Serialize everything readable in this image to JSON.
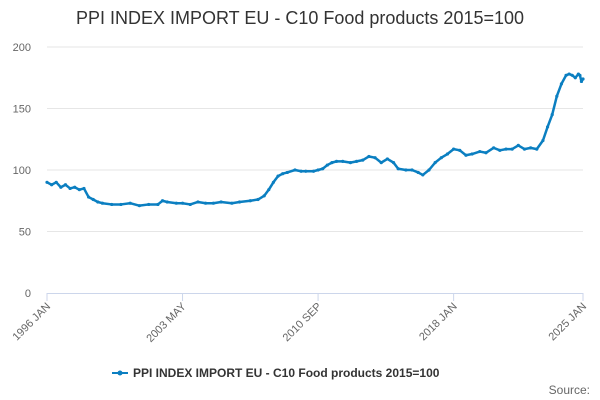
{
  "chart_data": {
    "type": "line",
    "title": "PPI INDEX IMPORT EU - C10 Food products 2015=100",
    "xlabel": "",
    "ylabel": "",
    "ylim": [
      0,
      200
    ],
    "y_ticks": [
      "0",
      "50",
      "100",
      "150",
      "200"
    ],
    "x_tick_labels": [
      "1996 JAN",
      "2003 MAY",
      "2010 SEP",
      "2018 JAN",
      "2025 JAN"
    ],
    "x_range": [
      "1996-01",
      "2025-01"
    ],
    "grid": "horizontal",
    "legend": "bottom-center",
    "series_color": "#0b7fc1",
    "series": [
      {
        "name": "PPI INDEX IMPORT EU - C10 Food products 2015=100",
        "points": [
          [
            "1996-01",
            90
          ],
          [
            "1996-04",
            88
          ],
          [
            "1996-07",
            90
          ],
          [
            "1996-10",
            86
          ],
          [
            "1997-01",
            88
          ],
          [
            "1997-04",
            85
          ],
          [
            "1997-07",
            86
          ],
          [
            "1997-10",
            84
          ],
          [
            "1998-01",
            85
          ],
          [
            "1998-04",
            78
          ],
          [
            "1998-07",
            76
          ],
          [
            "1998-10",
            74
          ],
          [
            "1999-01",
            73
          ],
          [
            "1999-07",
            72
          ],
          [
            "2000-01",
            72
          ],
          [
            "2000-07",
            73
          ],
          [
            "2001-01",
            71
          ],
          [
            "2001-07",
            72
          ],
          [
            "2002-01",
            72
          ],
          [
            "2002-04",
            75
          ],
          [
            "2002-07",
            74
          ],
          [
            "2003-01",
            73
          ],
          [
            "2003-05",
            73
          ],
          [
            "2003-10",
            72
          ],
          [
            "2004-03",
            74
          ],
          [
            "2004-08",
            73
          ],
          [
            "2005-01",
            73
          ],
          [
            "2005-06",
            74
          ],
          [
            "2006-01",
            73
          ],
          [
            "2006-06",
            74
          ],
          [
            "2007-01",
            75
          ],
          [
            "2007-06",
            76
          ],
          [
            "2007-10",
            79
          ],
          [
            "2008-01",
            84
          ],
          [
            "2008-04",
            90
          ],
          [
            "2008-07",
            95
          ],
          [
            "2008-10",
            97
          ],
          [
            "2009-01",
            98
          ],
          [
            "2009-06",
            100
          ],
          [
            "2009-10",
            99
          ],
          [
            "2010-01",
            99
          ],
          [
            "2010-06",
            99
          ],
          [
            "2010-09",
            100
          ],
          [
            "2010-12",
            101
          ],
          [
            "2011-03",
            104
          ],
          [
            "2011-06",
            106
          ],
          [
            "2011-09",
            107
          ],
          [
            "2012-01",
            107
          ],
          [
            "2012-06",
            106
          ],
          [
            "2012-10",
            107
          ],
          [
            "2013-02",
            108
          ],
          [
            "2013-06",
            111
          ],
          [
            "2013-10",
            110
          ],
          [
            "2014-02",
            106
          ],
          [
            "2014-06",
            109
          ],
          [
            "2014-10",
            106
          ],
          [
            "2015-01",
            101
          ],
          [
            "2015-06",
            100
          ],
          [
            "2015-10",
            100
          ],
          [
            "2016-02",
            98
          ],
          [
            "2016-05",
            96
          ],
          [
            "2016-09",
            100
          ],
          [
            "2017-01",
            106
          ],
          [
            "2017-05",
            110
          ],
          [
            "2017-09",
            113
          ],
          [
            "2018-01",
            117
          ],
          [
            "2018-05",
            116
          ],
          [
            "2018-09",
            112
          ],
          [
            "2019-01",
            113
          ],
          [
            "2019-06",
            115
          ],
          [
            "2019-10",
            114
          ],
          [
            "2020-03",
            118
          ],
          [
            "2020-07",
            116
          ],
          [
            "2020-11",
            117
          ],
          [
            "2021-03",
            117
          ],
          [
            "2021-07",
            120
          ],
          [
            "2021-11",
            117
          ],
          [
            "2022-03",
            118
          ],
          [
            "2022-07",
            117
          ],
          [
            "2022-11",
            124
          ],
          [
            "2023-02",
            135
          ],
          [
            "2023-05",
            145
          ],
          [
            "2023-08",
            160
          ],
          [
            "2023-11",
            170
          ],
          [
            "2024-02",
            177
          ],
          [
            "2024-04",
            178
          ],
          [
            "2024-06",
            177
          ],
          [
            "2024-08",
            175
          ],
          [
            "2024-10",
            178
          ],
          [
            "2024-11",
            177
          ],
          [
            "2024-12",
            172
          ],
          [
            "2025-01",
            174
          ]
        ]
      }
    ]
  },
  "credits": "Source:"
}
